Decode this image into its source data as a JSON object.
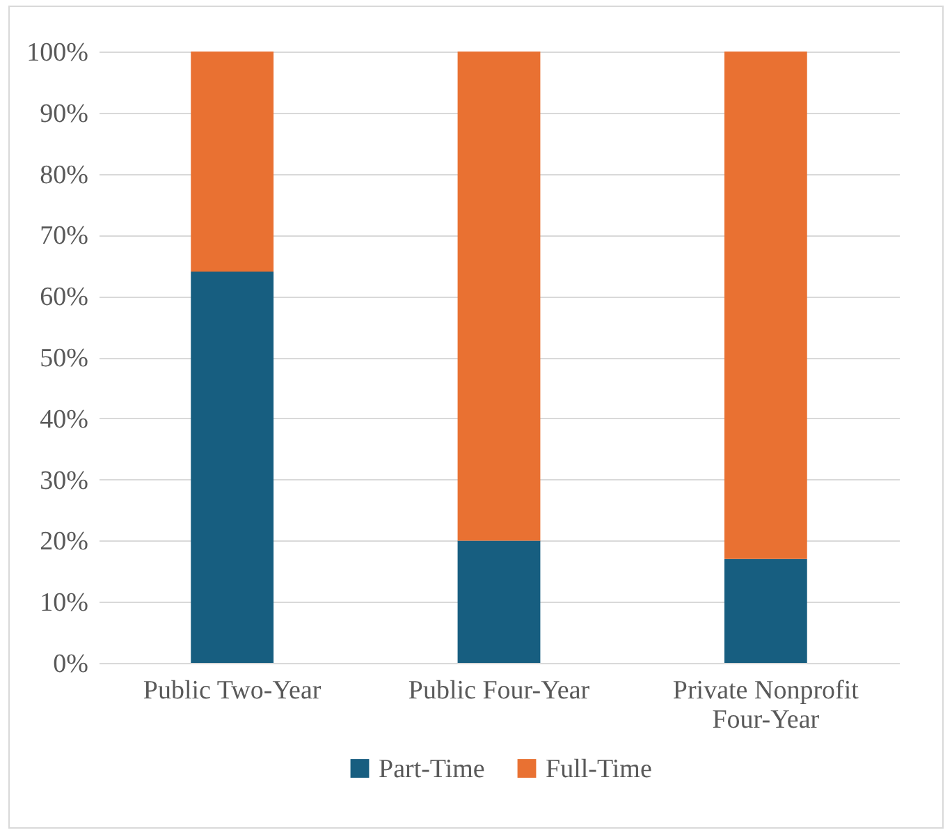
{
  "chart_data": {
    "type": "bar",
    "stacked": true,
    "categories": [
      "Public Two-Year",
      "Public Four-Year",
      "Private Nonprofit Four-Year"
    ],
    "series": [
      {
        "name": "Part-Time",
        "color": "#175e80",
        "values": [
          64,
          20,
          17
        ]
      },
      {
        "name": "Full-Time",
        "color": "#e97132",
        "values": [
          36,
          80,
          83
        ]
      }
    ],
    "ylim": [
      0,
      100
    ],
    "yticks": [
      {
        "value": 0,
        "label": "0%"
      },
      {
        "value": 10,
        "label": "10%"
      },
      {
        "value": 20,
        "label": "20%"
      },
      {
        "value": 30,
        "label": "30%"
      },
      {
        "value": 40,
        "label": "40%"
      },
      {
        "value": 50,
        "label": "50%"
      },
      {
        "value": 60,
        "label": "60%"
      },
      {
        "value": 70,
        "label": "70%"
      },
      {
        "value": 80,
        "label": "80%"
      },
      {
        "value": 90,
        "label": "90%"
      },
      {
        "value": 100,
        "label": "100%"
      }
    ],
    "grid": "y",
    "legend": "bottom"
  }
}
